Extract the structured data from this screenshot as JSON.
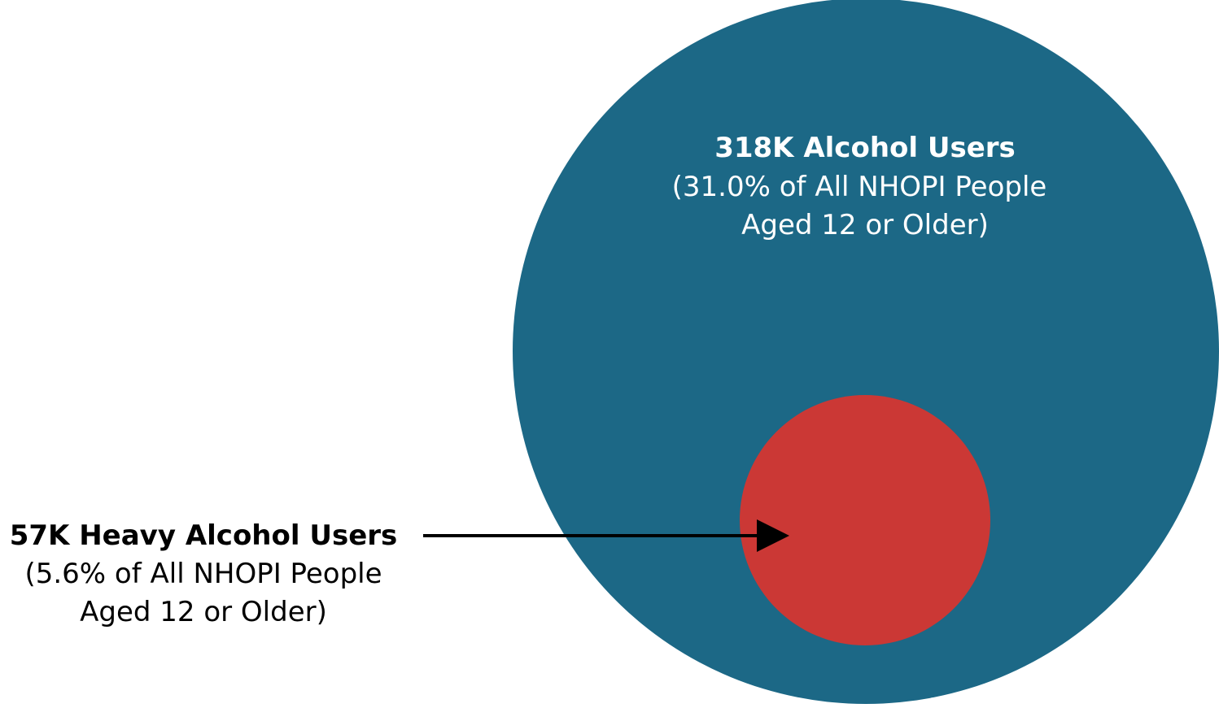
{
  "colors": {
    "outer_circle": "#1c6886",
    "inner_circle": "#cb3835",
    "outer_text": "#ffffff",
    "inner_label_text": "#000000",
    "arrow": "#000000"
  },
  "outer_group": {
    "title": "318K Alcohol Users",
    "line2": "(31.0% of All NHOPI People",
    "line3": "Aged 12 or Older)"
  },
  "inner_group": {
    "title": "57K Heavy Alcohol Users",
    "line2": "(5.6% of All NHOPI People",
    "line3": "Aged 12 or Older)"
  }
}
